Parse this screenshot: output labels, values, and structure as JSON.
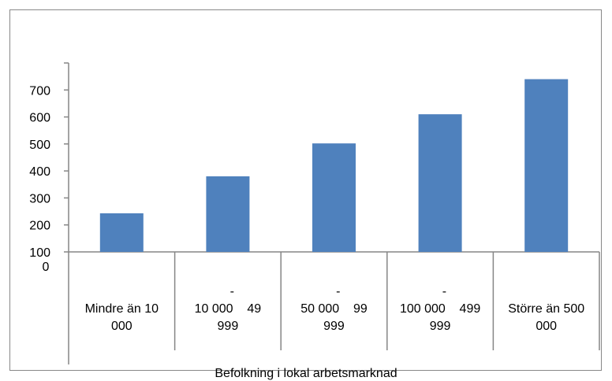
{
  "chart_data": {
    "type": "bar",
    "categories": [
      {
        "line1": "Mindre än 10",
        "line2": "000",
        "dash": ""
      },
      {
        "line1": "10 000    49",
        "line2": "999",
        "dash": "-"
      },
      {
        "line1": "50 000    99",
        "line2": "999",
        "dash": "-"
      },
      {
        "line1": "100 000    499",
        "line2": "999",
        "dash": "-"
      },
      {
        "line1": "Större än 500",
        "line2": "000",
        "dash": ""
      }
    ],
    "values": [
      243,
      380,
      502,
      610,
      740
    ],
    "xlabel": "Befolkning i lokal arbetsmarknad",
    "ylabel": "",
    "yticks": [
      "0",
      "100",
      "200",
      "300",
      "400",
      "500",
      "600",
      "700"
    ],
    "ylim": [
      100,
      800
    ],
    "grid": false,
    "colors": {
      "bar": "#4F81BD",
      "axis": "#868686"
    }
  }
}
